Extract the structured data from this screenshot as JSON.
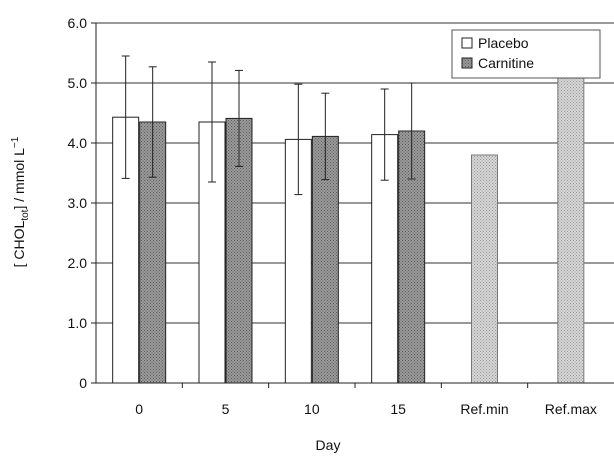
{
  "chart_data": {
    "type": "bar",
    "categories": [
      "0",
      "5",
      "10",
      "15",
      "Ref.min",
      "Ref.max"
    ],
    "series": [
      {
        "name": "Placebo",
        "values": [
          4.43,
          4.35,
          4.06,
          4.14,
          null,
          null
        ],
        "error": [
          1.02,
          1.0,
          0.92,
          0.76,
          null,
          null
        ],
        "color": "#ffffff"
      },
      {
        "name": "Carnitine",
        "values": [
          4.35,
          4.41,
          4.11,
          4.2,
          null,
          null
        ],
        "error": [
          0.92,
          0.8,
          0.72,
          0.8,
          null,
          null
        ],
        "color": "#8a8a8a"
      }
    ],
    "reference_values": [
      {
        "category": "Ref.min",
        "value": 3.8
      },
      {
        "category": "Ref.max",
        "value": 5.7
      }
    ],
    "reference_color": "#c8c8c8",
    "xlabel": "Day",
    "ylabel": {
      "base": "[ CHOL",
      "sub": "tot",
      "after": "] / mmol L",
      "sup": "−1"
    },
    "ylim": [
      0,
      6.0
    ],
    "yticks": [
      "0",
      "1.0",
      "2.0",
      "3.0",
      "4.0",
      "5.0",
      "6.0"
    ],
    "grid": true,
    "legend_placement": "top-right"
  }
}
